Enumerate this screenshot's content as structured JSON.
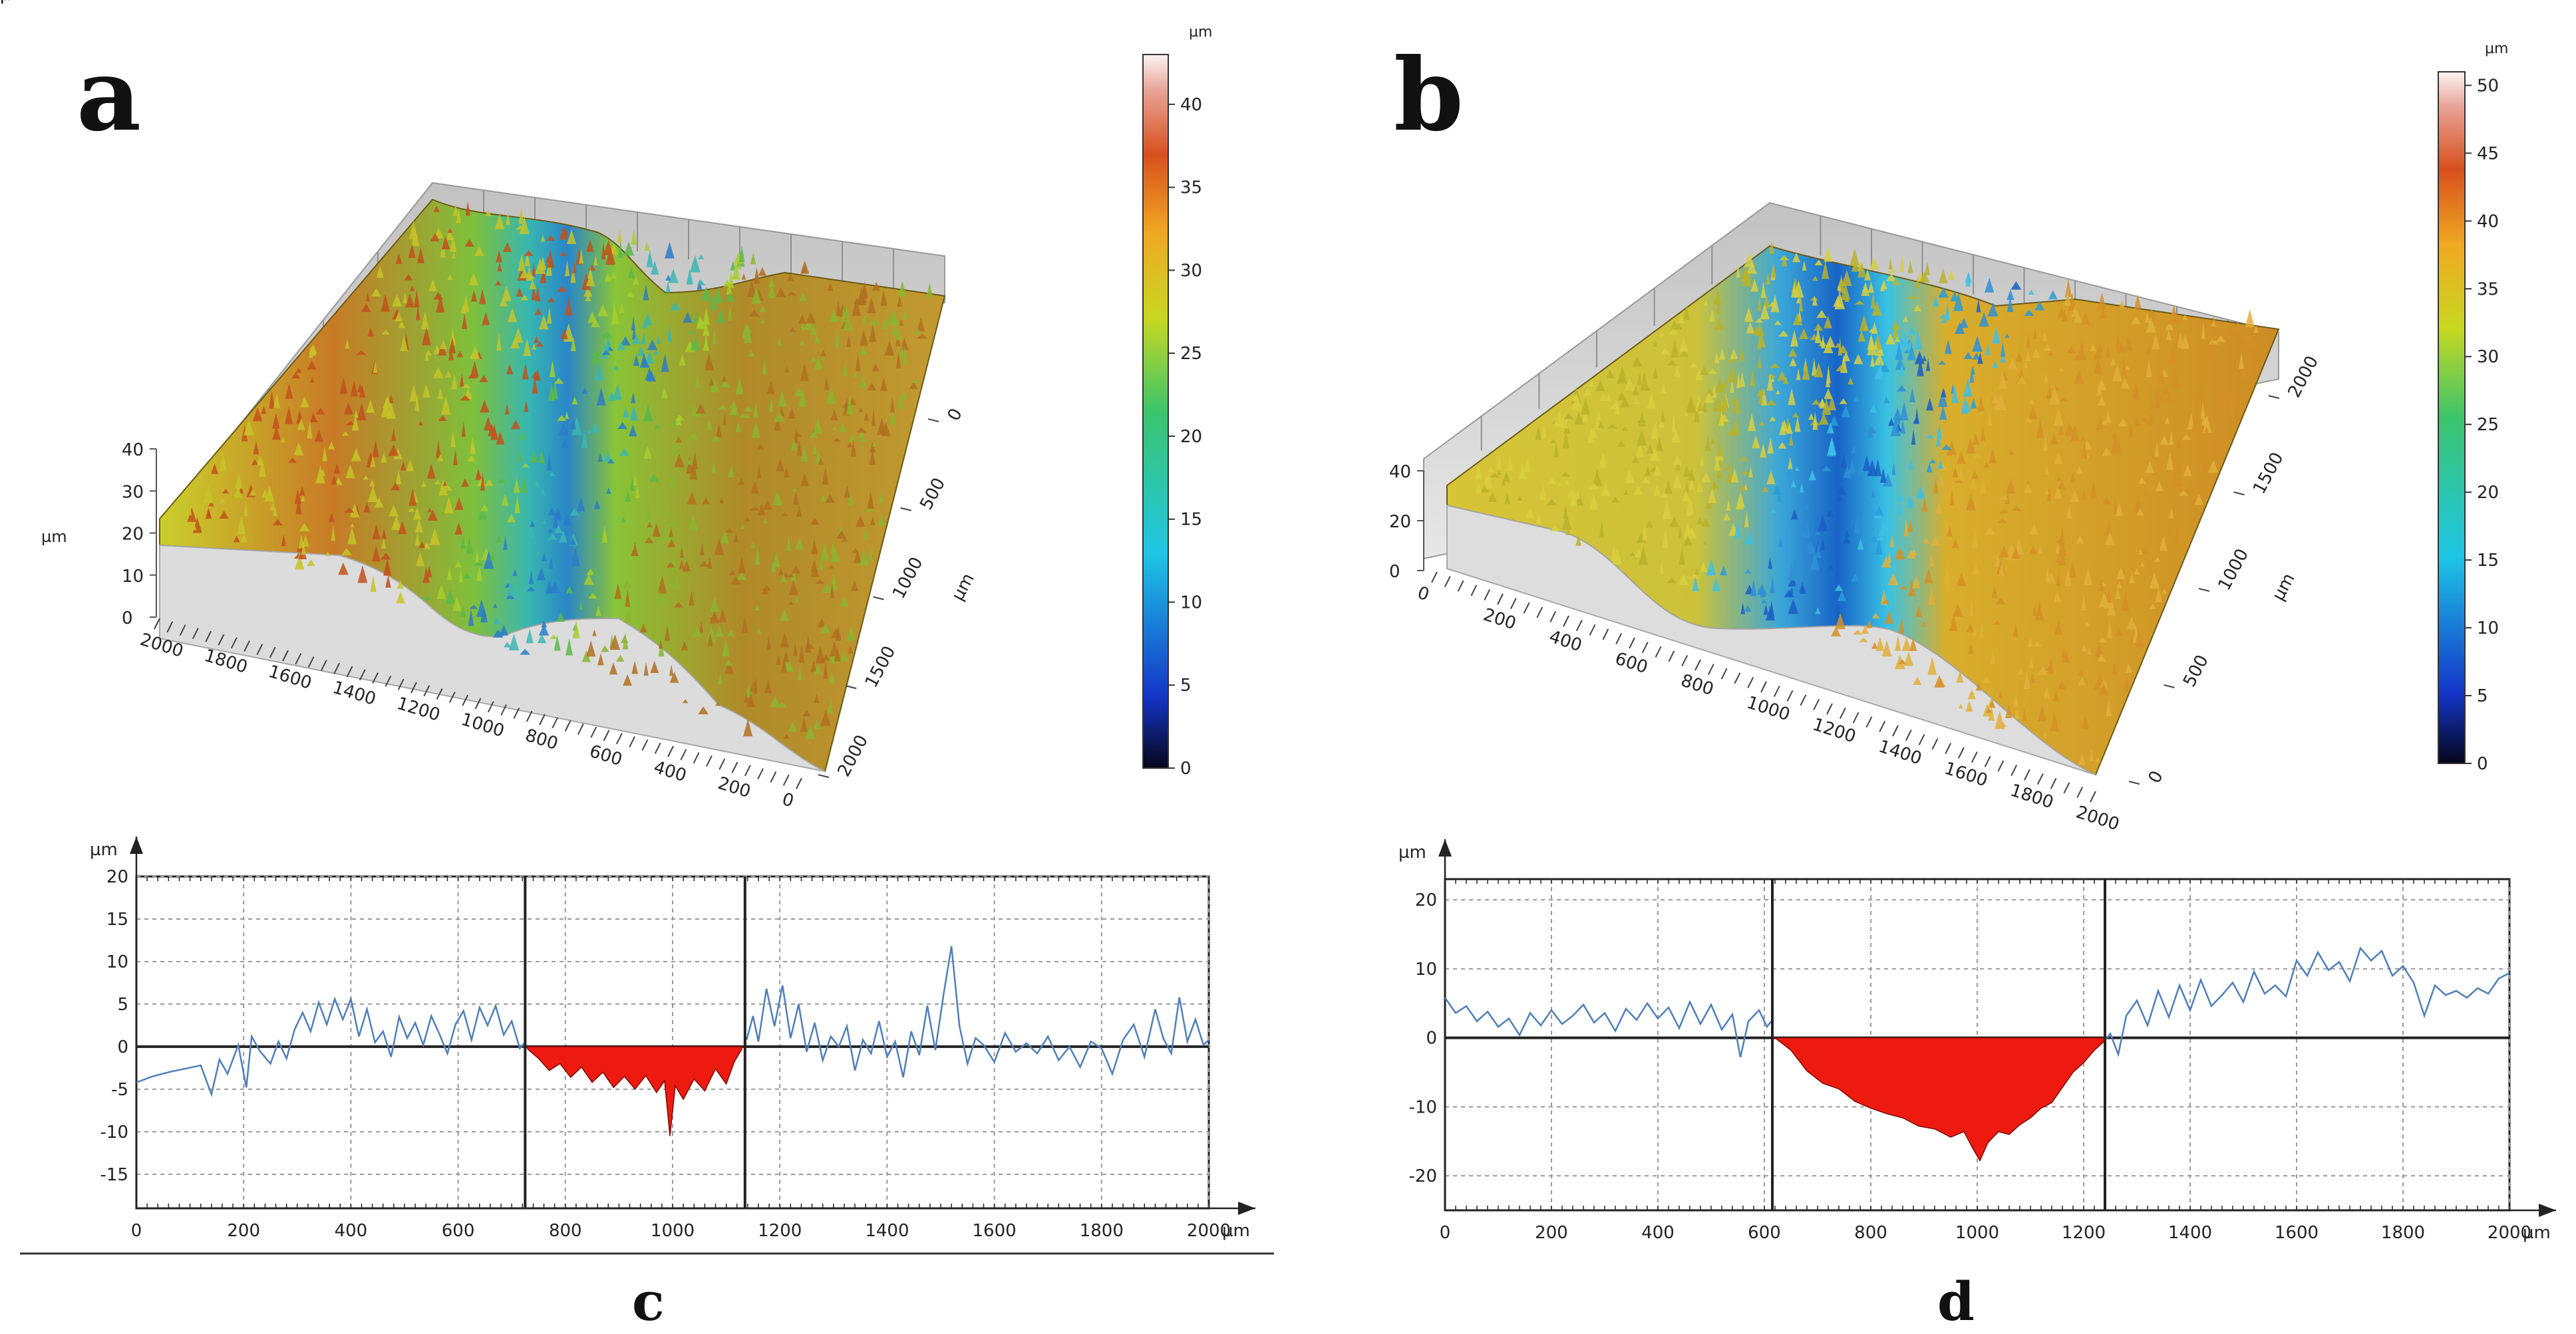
{
  "panels": {
    "a": "a",
    "b": "b",
    "c": "c",
    "d": "d"
  },
  "chart_data": [
    {
      "id": "a",
      "type": "surface3d",
      "title": "",
      "z_label": "µm",
      "z_ticks": [
        "0",
        "10",
        "20",
        "30",
        "40"
      ],
      "x_label": "µm",
      "x_ticks": [
        "2000",
        "1800",
        "1600",
        "1400",
        "1200",
        "1000",
        "800",
        "600",
        "400",
        "200",
        "0"
      ],
      "y_label": "µm",
      "y_ticks": [
        "0",
        "500",
        "1000",
        "1500",
        "2000"
      ],
      "groove": {
        "center_um": 950,
        "width_um": 400,
        "min_depth_um": 4,
        "surface_level_um": 30
      },
      "colorbar": {
        "unit": "µm",
        "min": 0,
        "max": 43,
        "ticks": [
          "0",
          "5",
          "10",
          "15",
          "20",
          "25",
          "30",
          "35",
          "40"
        ]
      }
    },
    {
      "id": "b",
      "type": "surface3d",
      "title": "",
      "z_label": "µm",
      "z_ticks": [
        "0",
        "20",
        "40"
      ],
      "x_label": "µm",
      "x_ticks": [
        "0",
        "200",
        "400",
        "600",
        "800",
        "1000",
        "1200",
        "1400",
        "1600",
        "1800",
        "2000"
      ],
      "y_label": "µm",
      "y_ticks": [
        "0",
        "500",
        "1000",
        "1500",
        "2000"
      ],
      "groove": {
        "center_um": 930,
        "width_um": 620,
        "min_depth_um": 5,
        "surface_level_um": 30
      },
      "colorbar": {
        "unit": "µm",
        "min": 0,
        "max": 51,
        "ticks": [
          "0",
          "5",
          "10",
          "15",
          "20",
          "25",
          "30",
          "35",
          "40",
          "45",
          "50"
        ]
      }
    },
    {
      "id": "c",
      "type": "line",
      "xlabel": "µm",
      "ylabel": "µm",
      "xlim": [
        0,
        2000
      ],
      "ylim": [
        -19,
        20
      ],
      "x_ticks": [
        "0",
        "200",
        "400",
        "600",
        "800",
        "1000",
        "1200",
        "1400",
        "1600",
        "1800",
        "2000"
      ],
      "y_ticks": [
        "20",
        "15",
        "10",
        "5",
        "0",
        "-5",
        "-10",
        "-15"
      ],
      "markers_x": [
        725,
        1135
      ],
      "fill_range": [
        728,
        1130
      ],
      "profile": [
        [
          0,
          -4.2
        ],
        [
          30,
          -3.5
        ],
        [
          60,
          -3.0
        ],
        [
          90,
          -2.6
        ],
        [
          120,
          -2.2
        ],
        [
          140,
          -5.6
        ],
        [
          155,
          -1.5
        ],
        [
          170,
          -3.2
        ],
        [
          190,
          0.2
        ],
        [
          205,
          -4.8
        ],
        [
          215,
          1.2
        ],
        [
          230,
          -0.5
        ],
        [
          250,
          -2.0
        ],
        [
          265,
          0.6
        ],
        [
          280,
          -1.4
        ],
        [
          295,
          2.0
        ],
        [
          310,
          4.0
        ],
        [
          325,
          1.8
        ],
        [
          340,
          5.2
        ],
        [
          355,
          2.6
        ],
        [
          370,
          5.6
        ],
        [
          385,
          3.2
        ],
        [
          400,
          5.6
        ],
        [
          415,
          1.2
        ],
        [
          430,
          4.4
        ],
        [
          445,
          0.5
        ],
        [
          460,
          1.8
        ],
        [
          475,
          -1.2
        ],
        [
          490,
          3.5
        ],
        [
          505,
          1.0
        ],
        [
          520,
          2.8
        ],
        [
          535,
          0.2
        ],
        [
          550,
          3.6
        ],
        [
          565,
          1.5
        ],
        [
          580,
          -0.8
        ],
        [
          595,
          2.6
        ],
        [
          610,
          4.2
        ],
        [
          625,
          0.8
        ],
        [
          640,
          4.6
        ],
        [
          655,
          2.5
        ],
        [
          670,
          4.8
        ],
        [
          685,
          1.4
        ],
        [
          700,
          3.0
        ],
        [
          715,
          -0.2
        ],
        [
          725,
          0.5
        ],
        [
          730,
          -0.3
        ],
        [
          750,
          -1.4
        ],
        [
          770,
          -2.8
        ],
        [
          790,
          -2.0
        ],
        [
          810,
          -3.6
        ],
        [
          830,
          -2.4
        ],
        [
          850,
          -4.2
        ],
        [
          870,
          -3.0
        ],
        [
          890,
          -4.8
        ],
        [
          910,
          -3.5
        ],
        [
          930,
          -5.0
        ],
        [
          950,
          -3.4
        ],
        [
          970,
          -5.4
        ],
        [
          985,
          -4.0
        ],
        [
          995,
          -10.5
        ],
        [
          1005,
          -4.6
        ],
        [
          1020,
          -6.2
        ],
        [
          1040,
          -3.8
        ],
        [
          1060,
          -5.2
        ],
        [
          1080,
          -2.6
        ],
        [
          1100,
          -4.4
        ],
        [
          1115,
          -1.8
        ],
        [
          1128,
          -0.4
        ],
        [
          1138,
          0.8
        ],
        [
          1150,
          3.6
        ],
        [
          1160,
          0.6
        ],
        [
          1175,
          6.8
        ],
        [
          1190,
          2.4
        ],
        [
          1205,
          7.2
        ],
        [
          1220,
          1.0
        ],
        [
          1235,
          5.0
        ],
        [
          1250,
          -0.6
        ],
        [
          1265,
          2.8
        ],
        [
          1280,
          -1.6
        ],
        [
          1295,
          1.2
        ],
        [
          1310,
          0.0
        ],
        [
          1325,
          2.4
        ],
        [
          1340,
          -2.8
        ],
        [
          1355,
          0.8
        ],
        [
          1370,
          -0.8
        ],
        [
          1385,
          3.0
        ],
        [
          1400,
          -1.2
        ],
        [
          1415,
          0.6
        ],
        [
          1430,
          -3.6
        ],
        [
          1445,
          1.8
        ],
        [
          1460,
          -1.0
        ],
        [
          1475,
          4.8
        ],
        [
          1490,
          -0.4
        ],
        [
          1505,
          6.0
        ],
        [
          1520,
          11.8
        ],
        [
          1535,
          2.4
        ],
        [
          1550,
          -2.0
        ],
        [
          1565,
          1.0
        ],
        [
          1580,
          0.2
        ],
        [
          1600,
          -1.8
        ],
        [
          1620,
          1.6
        ],
        [
          1640,
          -0.6
        ],
        [
          1660,
          0.4
        ],
        [
          1680,
          -0.8
        ],
        [
          1700,
          1.2
        ],
        [
          1720,
          -1.6
        ],
        [
          1740,
          0.0
        ],
        [
          1760,
          -2.4
        ],
        [
          1780,
          0.6
        ],
        [
          1800,
          -0.2
        ],
        [
          1820,
          -3.2
        ],
        [
          1840,
          0.8
        ],
        [
          1860,
          2.6
        ],
        [
          1880,
          -1.2
        ],
        [
          1900,
          4.4
        ],
        [
          1915,
          1.0
        ],
        [
          1930,
          -0.8
        ],
        [
          1945,
          5.8
        ],
        [
          1960,
          0.6
        ],
        [
          1975,
          3.2
        ],
        [
          1990,
          0.2
        ],
        [
          2000,
          0.8
        ]
      ]
    },
    {
      "id": "d",
      "type": "line",
      "xlabel": "µm",
      "ylabel": "µm",
      "xlim": [
        0,
        2000
      ],
      "ylim": [
        -25,
        23
      ],
      "x_ticks": [
        "0",
        "200",
        "400",
        "600",
        "800",
        "1000",
        "1200",
        "1400",
        "1600",
        "1800",
        "2000"
      ],
      "y_ticks": [
        "20",
        "10",
        "0",
        "-10",
        "-20"
      ],
      "markers_x": [
        615,
        1240
      ],
      "fill_range": [
        618,
        1240
      ],
      "profile": [
        [
          0,
          5.8
        ],
        [
          20,
          3.6
        ],
        [
          40,
          4.6
        ],
        [
          60,
          2.4
        ],
        [
          80,
          3.8
        ],
        [
          100,
          1.6
        ],
        [
          120,
          2.8
        ],
        [
          140,
          0.4
        ],
        [
          160,
          3.6
        ],
        [
          180,
          1.8
        ],
        [
          200,
          4.0
        ],
        [
          220,
          2.0
        ],
        [
          240,
          3.2
        ],
        [
          260,
          4.8
        ],
        [
          280,
          2.2
        ],
        [
          300,
          3.6
        ],
        [
          320,
          1.0
        ],
        [
          340,
          4.2
        ],
        [
          360,
          2.6
        ],
        [
          380,
          5.0
        ],
        [
          400,
          2.8
        ],
        [
          420,
          4.4
        ],
        [
          440,
          1.4
        ],
        [
          460,
          5.2
        ],
        [
          480,
          2.0
        ],
        [
          500,
          4.8
        ],
        [
          520,
          1.2
        ],
        [
          540,
          3.4
        ],
        [
          555,
          -2.8
        ],
        [
          570,
          2.4
        ],
        [
          590,
          4.0
        ],
        [
          605,
          1.6
        ],
        [
          615,
          2.6
        ],
        [
          620,
          0.8
        ],
        [
          650,
          -1.8
        ],
        [
          680,
          -4.8
        ],
        [
          710,
          -6.6
        ],
        [
          740,
          -7.4
        ],
        [
          770,
          -9.2
        ],
        [
          800,
          -10.2
        ],
        [
          830,
          -11.0
        ],
        [
          860,
          -11.6
        ],
        [
          890,
          -12.8
        ],
        [
          920,
          -13.2
        ],
        [
          950,
          -14.4
        ],
        [
          975,
          -13.6
        ],
        [
          990,
          -15.8
        ],
        [
          1005,
          -17.8
        ],
        [
          1020,
          -15.2
        ],
        [
          1040,
          -13.6
        ],
        [
          1060,
          -14.0
        ],
        [
          1080,
          -12.6
        ],
        [
          1100,
          -11.6
        ],
        [
          1120,
          -10.2
        ],
        [
          1140,
          -9.4
        ],
        [
          1160,
          -7.2
        ],
        [
          1180,
          -5.0
        ],
        [
          1200,
          -3.6
        ],
        [
          1220,
          -1.8
        ],
        [
          1240,
          -0.4
        ],
        [
          1250,
          0.6
        ],
        [
          1265,
          -2.4
        ],
        [
          1280,
          3.2
        ],
        [
          1300,
          5.4
        ],
        [
          1320,
          1.8
        ],
        [
          1340,
          6.8
        ],
        [
          1360,
          3.0
        ],
        [
          1380,
          7.6
        ],
        [
          1400,
          4.0
        ],
        [
          1420,
          8.4
        ],
        [
          1440,
          4.6
        ],
        [
          1460,
          6.2
        ],
        [
          1480,
          8.0
        ],
        [
          1500,
          5.2
        ],
        [
          1520,
          9.6
        ],
        [
          1540,
          6.4
        ],
        [
          1560,
          7.6
        ],
        [
          1580,
          6.0
        ],
        [
          1600,
          11.2
        ],
        [
          1620,
          9.0
        ],
        [
          1640,
          12.4
        ],
        [
          1660,
          9.8
        ],
        [
          1680,
          11.0
        ],
        [
          1700,
          8.2
        ],
        [
          1720,
          13.0
        ],
        [
          1740,
          11.2
        ],
        [
          1760,
          12.6
        ],
        [
          1780,
          9.0
        ],
        [
          1800,
          10.4
        ],
        [
          1820,
          8.0
        ],
        [
          1840,
          3.2
        ],
        [
          1860,
          7.6
        ],
        [
          1880,
          6.2
        ],
        [
          1900,
          6.8
        ],
        [
          1920,
          5.8
        ],
        [
          1940,
          7.2
        ],
        [
          1960,
          6.4
        ],
        [
          1980,
          8.6
        ],
        [
          2000,
          9.4
        ]
      ]
    }
  ]
}
